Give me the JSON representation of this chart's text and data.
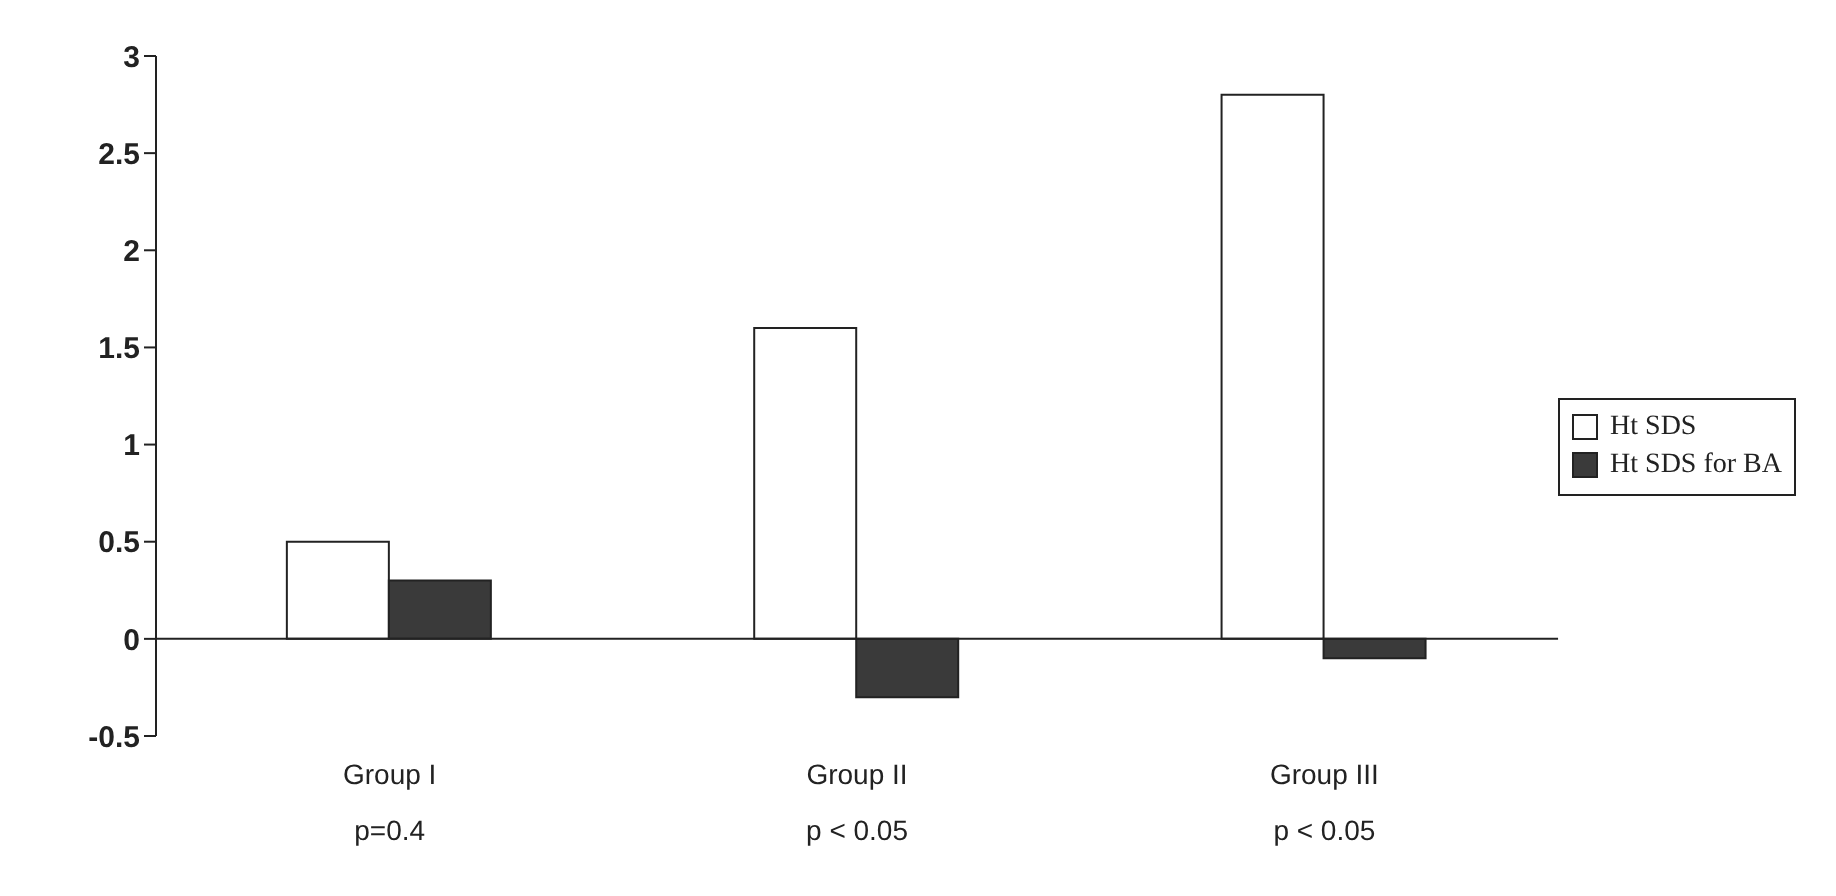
{
  "chart_data": {
    "type": "bar",
    "categories": [
      "Group I",
      "Group II",
      "Group III"
    ],
    "series": [
      {
        "name": "Ht SDS",
        "color": "#ffffff",
        "values": [
          0.5,
          1.6,
          2.8
        ]
      },
      {
        "name": "Ht SDS for BA",
        "color": "#3a3a3a",
        "values": [
          0.3,
          -0.3,
          -0.1
        ]
      }
    ],
    "ylim": [
      -0.5,
      3
    ],
    "yticks": [
      -0.5,
      0,
      0.5,
      1,
      1.5,
      2,
      2.5,
      3
    ],
    "legend": "right",
    "annotations": [
      "p=0.4",
      "p < 0.05",
      "p < 0.05"
    ]
  }
}
